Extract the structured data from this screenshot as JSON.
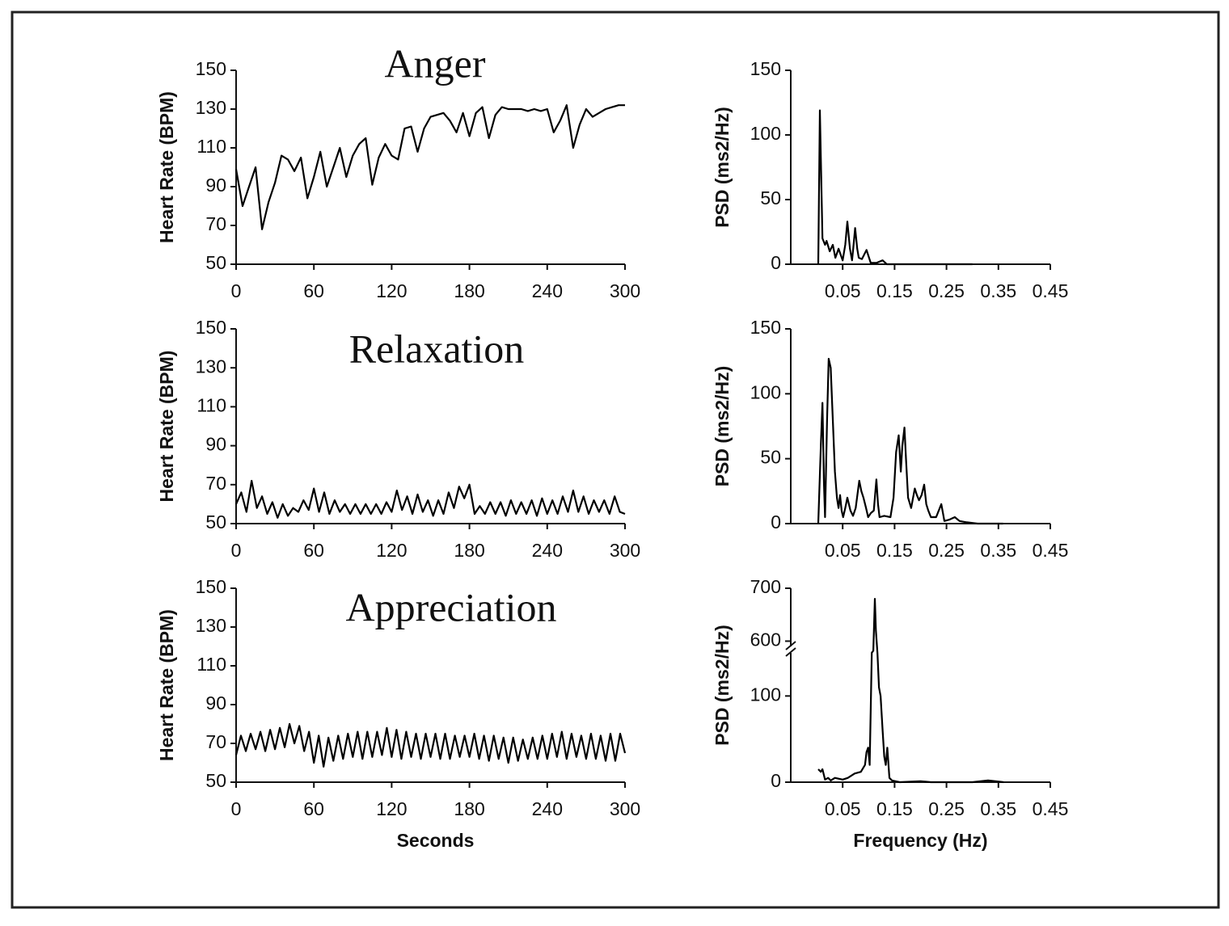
{
  "chart_data": [
    {
      "type": "line",
      "title": "Anger",
      "ylabel": "Heart Rate (BPM)",
      "color": "#000000",
      "xlim": [
        0,
        300
      ],
      "xticks": [
        0,
        60,
        120,
        180,
        240,
        300
      ],
      "ylim": [
        50,
        150
      ],
      "yticks": [
        50,
        70,
        90,
        110,
        130,
        150
      ],
      "x": [
        0,
        5,
        10,
        15,
        20,
        25,
        30,
        35,
        40,
        45,
        50,
        55,
        60,
        65,
        70,
        75,
        80,
        85,
        90,
        95,
        100,
        105,
        110,
        115,
        120,
        125,
        130,
        135,
        140,
        145,
        150,
        155,
        160,
        165,
        170,
        175,
        180,
        185,
        190,
        195,
        200,
        205,
        210,
        215,
        220,
        225,
        230,
        235,
        240,
        245,
        250,
        255,
        260,
        265,
        270,
        275,
        280,
        285,
        290,
        295,
        300
      ],
      "values": [
        99,
        80,
        90,
        100,
        68,
        82,
        92,
        106,
        104,
        98,
        105,
        84,
        95,
        108,
        90,
        100,
        110,
        95,
        106,
        112,
        115,
        91,
        105,
        112,
        106,
        104,
        120,
        121,
        108,
        120,
        126,
        127,
        128,
        124,
        118,
        128,
        116,
        128,
        131,
        115,
        127,
        131,
        130,
        130,
        130,
        129,
        130,
        129,
        130,
        118,
        124,
        132,
        110,
        122,
        130,
        126,
        128,
        130,
        131,
        132,
        132
      ]
    },
    {
      "type": "line",
      "ylabel": "PSD (ms2/Hz)",
      "color": "#000000",
      "xlim": [
        -0.05,
        0.45
      ],
      "xticks": [
        0.05,
        0.15,
        0.25,
        0.35,
        0.45
      ],
      "ylim": [
        0,
        150
      ],
      "yticks": [
        0,
        50,
        100,
        150
      ],
      "x": [
        0.003,
        0.006,
        0.011,
        0.016,
        0.019,
        0.025,
        0.031,
        0.036,
        0.042,
        0.05,
        0.055,
        0.059,
        0.064,
        0.068,
        0.071,
        0.074,
        0.078,
        0.081,
        0.087,
        0.096,
        0.104,
        0.115,
        0.127,
        0.135,
        0.3
      ],
      "values": [
        0,
        119,
        20,
        15,
        18,
        10,
        15,
        5,
        12,
        3,
        15,
        33,
        12,
        3,
        15,
        28,
        12,
        5,
        4,
        11,
        1,
        1,
        3,
        0,
        0
      ]
    },
    {
      "type": "line",
      "title": "Relaxation",
      "ylabel": "Heart Rate (BPM)",
      "color": "#000000",
      "xlim": [
        0,
        300
      ],
      "xticks": [
        0,
        60,
        120,
        180,
        240,
        300
      ],
      "ylim": [
        50,
        150
      ],
      "yticks": [
        50,
        70,
        90,
        110,
        130,
        150
      ],
      "x": [
        0,
        4,
        8,
        12,
        16,
        20,
        24,
        28,
        32,
        36,
        40,
        44,
        48,
        52,
        56,
        60,
        64,
        68,
        72,
        76,
        80,
        84,
        88,
        92,
        96,
        100,
        104,
        108,
        112,
        116,
        120,
        124,
        128,
        132,
        136,
        140,
        144,
        148,
        152,
        156,
        160,
        164,
        168,
        172,
        176,
        180,
        184,
        188,
        192,
        196,
        200,
        204,
        208,
        212,
        216,
        220,
        224,
        228,
        232,
        236,
        240,
        244,
        248,
        252,
        256,
        260,
        264,
        268,
        272,
        276,
        280,
        284,
        288,
        292,
        296,
        300
      ],
      "values": [
        60,
        66,
        56,
        72,
        58,
        64,
        55,
        61,
        53,
        60,
        54,
        58,
        56,
        62,
        57,
        68,
        56,
        66,
        55,
        62,
        56,
        60,
        55,
        60,
        55,
        60,
        55,
        60,
        55,
        61,
        56,
        67,
        57,
        64,
        55,
        65,
        56,
        62,
        54,
        62,
        55,
        66,
        58,
        69,
        63,
        70,
        55,
        59,
        55,
        61,
        55,
        61,
        54,
        62,
        55,
        61,
        55,
        62,
        54,
        63,
        55,
        62,
        55,
        64,
        56,
        67,
        56,
        64,
        55,
        62,
        56,
        62,
        55,
        64,
        56,
        55
      ]
    },
    {
      "type": "line",
      "ylabel": "PSD (ms2/Hz)",
      "color": "#000000",
      "xlim": [
        -0.05,
        0.45
      ],
      "xticks": [
        0.05,
        0.15,
        0.25,
        0.35,
        0.45
      ],
      "ylim": [
        0,
        150
      ],
      "yticks": [
        0,
        50,
        100,
        150
      ],
      "x": [
        0.003,
        0.008,
        0.011,
        0.014,
        0.016,
        0.02,
        0.023,
        0.027,
        0.031,
        0.035,
        0.039,
        0.042,
        0.045,
        0.048,
        0.051,
        0.055,
        0.059,
        0.062,
        0.065,
        0.07,
        0.075,
        0.082,
        0.086,
        0.09,
        0.095,
        0.099,
        0.104,
        0.11,
        0.115,
        0.118,
        0.121,
        0.13,
        0.142,
        0.148,
        0.153,
        0.158,
        0.162,
        0.165,
        0.169,
        0.172,
        0.176,
        0.182,
        0.189,
        0.193,
        0.197,
        0.202,
        0.207,
        0.211,
        0.215,
        0.22,
        0.23,
        0.24,
        0.246,
        0.255,
        0.266,
        0.275,
        0.289,
        0.31,
        0.359
      ],
      "values": [
        0,
        60,
        93,
        30,
        5,
        80,
        127,
        120,
        80,
        40,
        20,
        12,
        22,
        10,
        5,
        12,
        20,
        15,
        10,
        6,
        12,
        33,
        25,
        20,
        12,
        5,
        8,
        10,
        34,
        15,
        5,
        6,
        5,
        20,
        55,
        68,
        40,
        60,
        74,
        50,
        20,
        12,
        27,
        22,
        18,
        22,
        30,
        15,
        10,
        5,
        5,
        15,
        2,
        3,
        5,
        2,
        1,
        0,
        0
      ]
    },
    {
      "type": "line",
      "title": "Appreciation",
      "ylabel": "Heart Rate (BPM)",
      "xlabel": "Seconds",
      "color": "#000000",
      "xlim": [
        0,
        300
      ],
      "xticks": [
        0,
        60,
        120,
        180,
        240,
        300
      ],
      "ylim": [
        50,
        150
      ],
      "yticks": [
        50,
        70,
        90,
        110,
        130,
        150
      ],
      "x": [
        0,
        3.75,
        7.5,
        11.25,
        15,
        18.75,
        22.5,
        26.25,
        30,
        33.75,
        37.5,
        41.25,
        45,
        48.75,
        52.5,
        56.25,
        60,
        63.75,
        67.5,
        71.25,
        75,
        78.75,
        82.5,
        86.25,
        90,
        93.75,
        97.5,
        101.25,
        105,
        108.75,
        112.5,
        116.25,
        120,
        123.75,
        127.5,
        131.25,
        135,
        138.75,
        142.5,
        146.25,
        150,
        153.75,
        157.5,
        161.25,
        165,
        168.75,
        172.5,
        176.25,
        180,
        183.75,
        187.5,
        191.25,
        195,
        198.75,
        202.5,
        206.25,
        210,
        213.75,
        217.5,
        221.25,
        225,
        228.75,
        232.5,
        236.25,
        240,
        243.75,
        247.5,
        251.25,
        255,
        258.75,
        262.5,
        266.25,
        270,
        273.75,
        277.5,
        281.25,
        285,
        288.75,
        292.5,
        296.25,
        300
      ],
      "values": [
        64,
        74,
        66,
        75,
        67,
        76,
        66,
        77,
        67,
        78,
        68,
        80,
        70,
        79,
        66,
        76,
        60,
        74,
        58,
        73,
        61,
        74,
        62,
        75,
        63,
        76,
        62,
        76,
        63,
        76,
        64,
        78,
        63,
        77,
        62,
        76,
        63,
        75,
        62,
        75,
        63,
        75,
        62,
        75,
        62,
        74,
        63,
        74,
        63,
        75,
        62,
        74,
        61,
        74,
        62,
        73,
        60,
        73,
        61,
        72,
        62,
        73,
        62,
        74,
        62,
        75,
        63,
        76,
        62,
        75,
        63,
        74,
        62,
        75,
        62,
        74,
        61,
        75,
        61,
        75,
        65
      ]
    },
    {
      "type": "line",
      "ylabel": "PSD (ms2/Hz)",
      "xlabel": "Frequency (Hz)",
      "color": "#000000",
      "xlim": [
        -0.05,
        0.45
      ],
      "xticks": [
        0.05,
        0.15,
        0.25,
        0.35,
        0.45
      ],
      "ylim": [
        0,
        700
      ],
      "y_break": [
        150,
        590
      ],
      "yticks": [
        0,
        100,
        600,
        700
      ],
      "x": [
        0.003,
        0.008,
        0.011,
        0.016,
        0.022,
        0.027,
        0.035,
        0.05,
        0.06,
        0.073,
        0.085,
        0.093,
        0.096,
        0.099,
        0.102,
        0.106,
        0.109,
        0.112,
        0.114,
        0.117,
        0.12,
        0.123,
        0.127,
        0.13,
        0.133,
        0.136,
        0.14,
        0.145,
        0.16,
        0.2,
        0.22,
        0.3,
        0.33,
        0.36
      ],
      "values": [
        15,
        12,
        15,
        3,
        5,
        2,
        5,
        3,
        5,
        10,
        12,
        20,
        35,
        40,
        20,
        160,
        300,
        680,
        620,
        150,
        110,
        100,
        60,
        30,
        20,
        40,
        5,
        2,
        0,
        1,
        0,
        0,
        2,
        0
      ]
    }
  ]
}
